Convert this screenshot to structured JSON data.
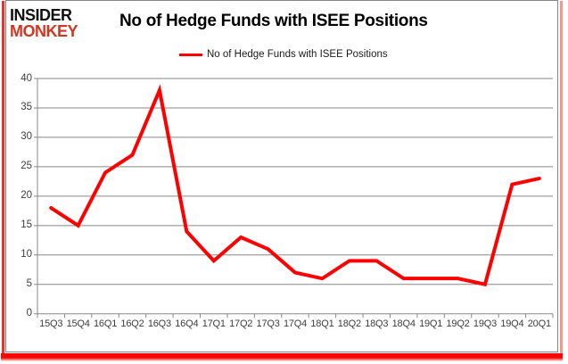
{
  "logo": {
    "line1": "INSIDER",
    "line2": "MONKEY"
  },
  "header": {
    "title": "No of Hedge Funds with ISEE Positions"
  },
  "legend": {
    "label": "No of Hedge Funds with ISEE Positions"
  },
  "colors": {
    "series_red": "#ff0000",
    "logo_red": "#cf3722",
    "frame_red_left": "#ee3124",
    "frame_red_right": "#f2998f",
    "frame_red_bottom": "#f80606",
    "gridline_gray": "#878787"
  },
  "chart_data": {
    "type": "line",
    "title": "No of Hedge Funds with ISEE Positions",
    "legend_entries": [
      "No of Hedge Funds with ISEE Positions"
    ],
    "legend_position": "top",
    "categories": [
      "15Q3",
      "15Q4",
      "16Q1",
      "16Q2",
      "16Q3",
      "16Q4",
      "17Q1",
      "17Q2",
      "17Q3",
      "17Q4",
      "18Q1",
      "18Q2",
      "18Q3",
      "18Q4",
      "19Q1",
      "19Q2",
      "19Q3",
      "19Q4",
      "20Q1"
    ],
    "values": [
      18,
      15,
      24,
      27,
      38,
      14,
      9,
      13,
      11,
      7,
      6,
      9,
      9,
      6,
      6,
      6,
      5,
      22,
      23
    ],
    "xlabel": "",
    "ylabel": "",
    "ylim": [
      0,
      40
    ],
    "yticks": [
      0,
      5,
      10,
      15,
      20,
      25,
      30,
      35,
      40
    ],
    "grid": true,
    "line_color": "#ff0000",
    "line_width": 4,
    "gridline_color": "#878787"
  }
}
